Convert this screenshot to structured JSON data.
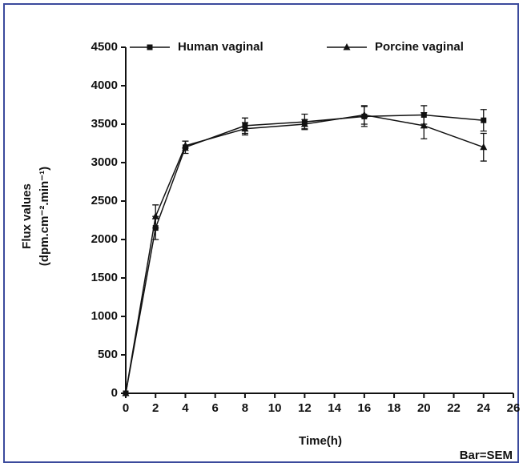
{
  "chart_data": {
    "type": "line",
    "x": [
      0,
      2,
      4,
      8,
      12,
      16,
      20,
      24
    ],
    "series": [
      {
        "name": "Human vaginal",
        "color": "#111111",
        "marker": "square",
        "values": [
          0,
          2150,
          3200,
          3480,
          3530,
          3600,
          3620,
          3550
        ],
        "errors": [
          0,
          150,
          80,
          100,
          100,
          130,
          120,
          140
        ]
      },
      {
        "name": "Porcine vaginal",
        "color": "#111111",
        "marker": "triangle",
        "values": [
          0,
          2300,
          3220,
          3440,
          3500,
          3620,
          3480,
          3200
        ],
        "errors": [
          0,
          150,
          60,
          80,
          60,
          120,
          170,
          180
        ]
      }
    ],
    "xlabel": "Time(h)",
    "ylabel": [
      "Flux values",
      "(dpm.cm⁻².min⁻¹)"
    ],
    "annotation": "Bar=SEM",
    "xlim": [
      0,
      26
    ],
    "xticks": [
      0,
      2,
      4,
      6,
      8,
      10,
      12,
      14,
      16,
      18,
      20,
      22,
      24,
      26
    ],
    "ylim": [
      0,
      4500
    ],
    "yticks": [
      0,
      500,
      1000,
      1500,
      2000,
      2500,
      3000,
      3500,
      4000,
      4500
    ],
    "legend": "top"
  }
}
